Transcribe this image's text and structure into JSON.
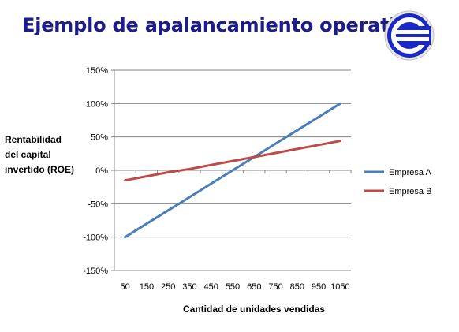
{
  "slide": {
    "title": "Ejemplo de apalancamiento operativo"
  },
  "logo": {
    "icon": "euro-circle-logo",
    "color": "#1a28c8"
  },
  "chart_data": {
    "type": "line",
    "title": "",
    "xlabel": "Cantidad de unidades vendidas",
    "ylabel": [
      "Rentabilidad",
      "del capital",
      "invertido (ROE)"
    ],
    "x": [
      50,
      150,
      250,
      350,
      450,
      550,
      650,
      750,
      850,
      950,
      1050
    ],
    "x_tick_labels": [
      "50",
      "150",
      "250",
      "350",
      "450",
      "550",
      "650",
      "750",
      "850",
      "950",
      "1050"
    ],
    "ylim": [
      -150,
      150
    ],
    "y_ticks": [
      -150,
      -100,
      -50,
      0,
      50,
      100,
      150
    ],
    "y_tick_labels": [
      "-150%",
      "-100%",
      "-50%",
      "0%",
      "50%",
      "100%",
      "150%"
    ],
    "grid": true,
    "legend_position": "right",
    "series": [
      {
        "name": "Empresa A",
        "color": "#4a7ebb",
        "values": [
          -100,
          -80,
          -60,
          -40,
          -20,
          0,
          20,
          40,
          60,
          80,
          100
        ]
      },
      {
        "name": "Empresa B",
        "color": "#be4b48",
        "values": [
          -15,
          -9,
          -3,
          2,
          8,
          14,
          20,
          26,
          32,
          38,
          44
        ]
      }
    ]
  }
}
